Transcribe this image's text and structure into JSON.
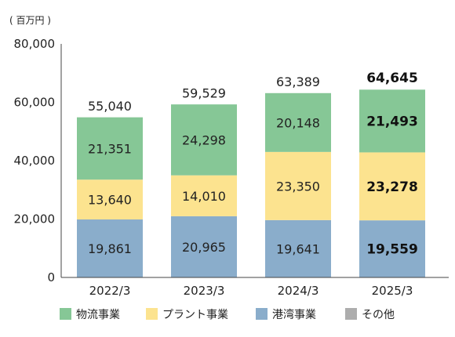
{
  "chart_data": {
    "type": "bar",
    "stacked": true,
    "unit": "( 百万円 )",
    "categories": [
      "2022/3",
      "2023/3",
      "2024/3",
      "2025/3"
    ],
    "ylim": [
      0,
      80000
    ],
    "yticks": [
      "0",
      "20,000",
      "40,000",
      "60,000",
      "80,000"
    ],
    "ytick_values": [
      0,
      20000,
      40000,
      60000,
      80000
    ],
    "grid": false,
    "legend_position": "bottom",
    "highlight_category_index": 3,
    "series": [
      {
        "name": "港湾事業",
        "color": "#8AADCB",
        "values": [
          19861,
          20965,
          19641,
          19559
        ],
        "labels": [
          "19,861",
          "20,965",
          "19,641",
          "19,559"
        ]
      },
      {
        "name": "プラント事業",
        "color": "#FCE38F",
        "values": [
          13640,
          14010,
          23350,
          23278
        ],
        "labels": [
          "13,640",
          "14,010",
          "23,350",
          "23,278"
        ]
      },
      {
        "name": "物流事業",
        "color": "#86C796",
        "values": [
          21351,
          24298,
          20148,
          21493
        ],
        "labels": [
          "21,351",
          "24,298",
          "20,148",
          "21,493"
        ]
      }
    ],
    "totals": [
      55040,
      59529,
      63389,
      64645
    ],
    "total_labels": [
      "55,040",
      "59,529",
      "63,389",
      "64,645"
    ],
    "legend": [
      {
        "name": "物流事業",
        "color": "#86C796"
      },
      {
        "name": "プラント事業",
        "color": "#FCE38F"
      },
      {
        "name": "港湾事業",
        "color": "#8AADCB"
      },
      {
        "name": "その他",
        "color": "#ADADAD"
      }
    ]
  }
}
